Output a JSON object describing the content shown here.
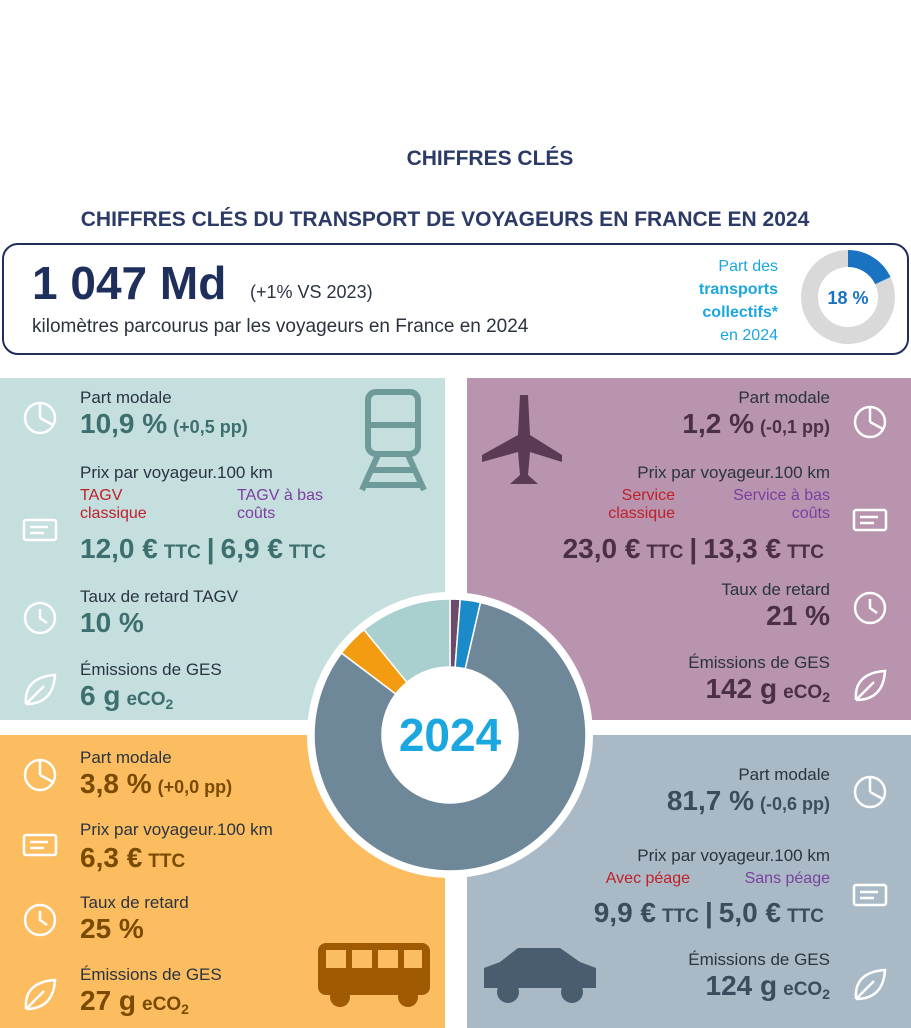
{
  "header": {
    "title": "CHIFFRES CLÉS",
    "subtitle": "CHIFFRES CLÉS DU TRANSPORT DE VOYAGEURS EN FRANCE EN 2024"
  },
  "summary": {
    "value": "1 047 Md",
    "change": "(+1% VS 2023)",
    "caption": "kilomètres parcourus par les voyageurs en France en 2024",
    "share_lines": [
      "Part des",
      "transports",
      "collectifs*",
      "en 2024"
    ],
    "share": {
      "value": 18,
      "label": "18 %",
      "color": "#1a73c0",
      "rest_color": "#d9d9d9"
    }
  },
  "ttc": "TTC",
  "separator": "|",
  "co2": {
    "unit": "eCO",
    "sub": "2"
  },
  "panels": {
    "train": {
      "share_label": "Part modale",
      "share": "10,9 %",
      "share_change": "(+0,5 pp)",
      "price_label": "Prix par voyageur.100 km",
      "price_a_label": "TAGV classique",
      "price_b_label": "TAGV à bas coûts",
      "price_a": "12,0 €",
      "price_b": "6,9 €",
      "delay_label": "Taux de retard TAGV",
      "delay": "10 %",
      "emissions_label": "Émissions de GES",
      "emissions": "6 g"
    },
    "air": {
      "share_label": "Part modale",
      "share": "1,2 %",
      "share_change": "(-0,1 pp)",
      "price_label": "Prix par voyageur.100 km",
      "price_a_label": "Service classique",
      "price_b_label": "Service à bas coûts",
      "price_a": "23,0 €",
      "price_b": "13,3 €",
      "delay_label": "Taux de retard",
      "delay": "21 %",
      "emissions_label": "Émissions de GES",
      "emissions": "142 g"
    },
    "bus": {
      "share_label": "Part modale",
      "share": "3,8 %",
      "share_change": "(+0,0 pp)",
      "price_label": "Prix par voyageur.100 km",
      "price_a": "6,3 €",
      "delay_label": "Taux de retard",
      "delay": "25 %",
      "emissions_label": "Émissions de GES",
      "emissions": "27 g"
    },
    "car": {
      "share_label": "Part modale",
      "share": "81,7 %",
      "share_change": "(-0,6 pp)",
      "price_label": "Prix par voyageur.100 km",
      "price_a_label": "Avec péage",
      "price_b_label": "Sans péage",
      "price_a": "9,9 €",
      "price_b": "5,0 €",
      "emissions_label": "Émissions de GES",
      "emissions": "124 g"
    }
  },
  "donut": {
    "center": "2024",
    "values": [
      1.2,
      2.4,
      81.7,
      3.8,
      10.9
    ],
    "colors": [
      "#6b4a6b",
      "#1a8ac9",
      "#6e8799",
      "#f39c12",
      "#a9cfcf"
    ]
  }
}
